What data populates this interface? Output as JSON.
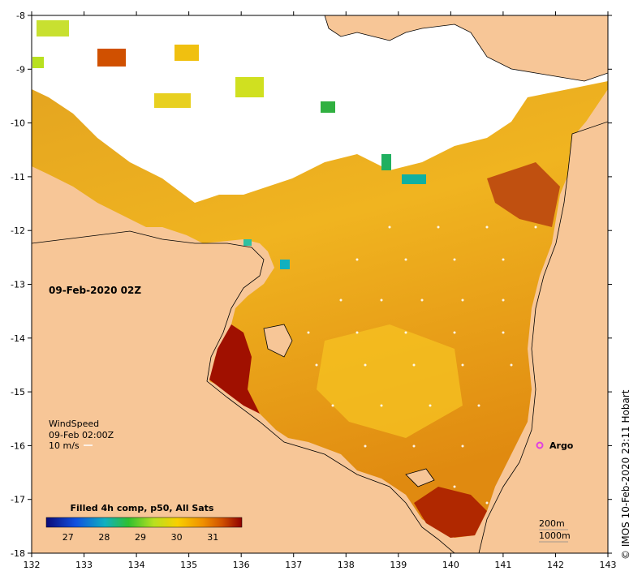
{
  "map": {
    "date_label": "09-Feb-2020 02Z",
    "x_ticks": [
      "132",
      "133",
      "134",
      "135",
      "136",
      "137",
      "138",
      "139",
      "140",
      "141",
      "142",
      "143"
    ],
    "y_ticks": [
      "-8",
      "-9",
      "-10",
      "-11",
      "-12",
      "-13",
      "-14",
      "-15",
      "-16",
      "-17",
      "-18"
    ],
    "wind_title": "WindSpeed",
    "wind_time": "09-Feb 02:00Z",
    "wind_scale": "10 m/s",
    "argo_label": "Argo",
    "depth_200": "200m",
    "depth_1000": "1000m",
    "colorbar_title": "Filled 4h comp, p50, All Sats",
    "colorbar_ticks": [
      "27",
      "28",
      "29",
      "30",
      "31"
    ],
    "credit": "© IMOS 10-Feb-2020 23:11 Hobart",
    "colors": {
      "land": "#f7c697",
      "cloud": "#ffffff",
      "argo": "#e040e0",
      "sst_scale": [
        "#0a0a78",
        "#1050e0",
        "#10b0c0",
        "#30c030",
        "#b8e020",
        "#f8d000",
        "#f09000",
        "#d05000",
        "#900000"
      ]
    }
  }
}
